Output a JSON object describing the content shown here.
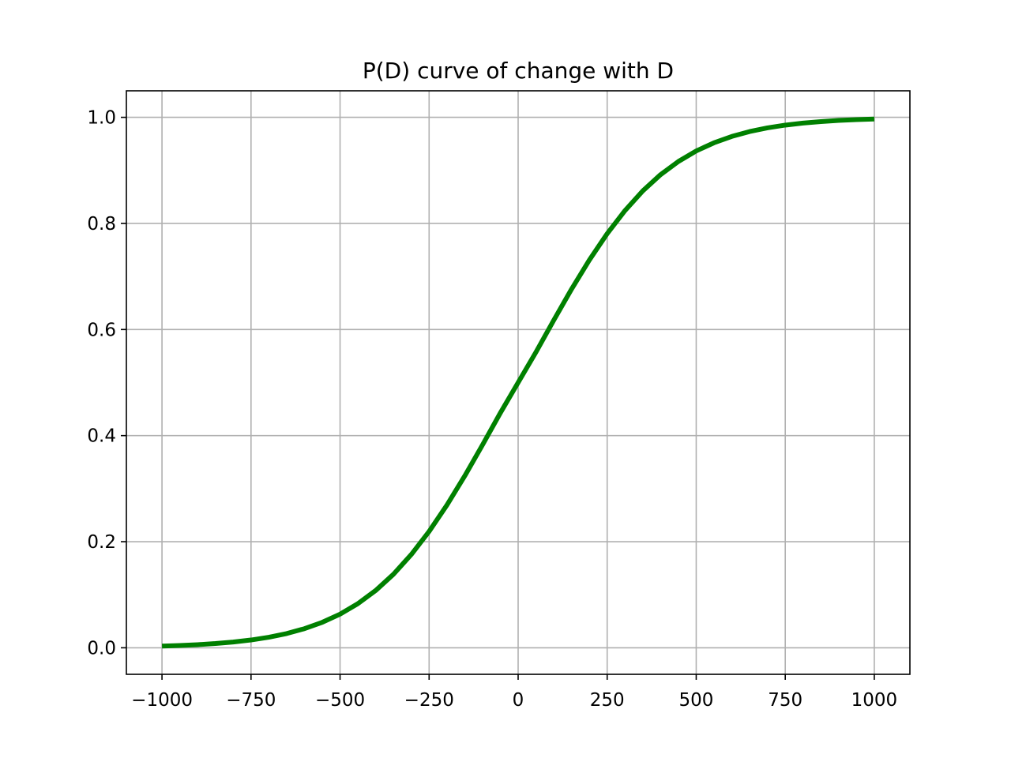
{
  "chart_data": {
    "type": "line",
    "title": "P(D) curve of change with D",
    "xlabel": "",
    "ylabel": "",
    "xlim": [
      -1100,
      1100
    ],
    "ylim": [
      -0.05,
      1.05
    ],
    "grid": true,
    "x_ticks": [
      -1000,
      -750,
      -500,
      -250,
      0,
      250,
      500,
      750,
      1000
    ],
    "x_tick_labels": [
      "−1000",
      "−750",
      "−500",
      "−250",
      "0",
      "250",
      "500",
      "750",
      "1000"
    ],
    "y_ticks": [
      0.0,
      0.2,
      0.4,
      0.6,
      0.8,
      1.0
    ],
    "y_tick_labels": [
      "0.0",
      "0.2",
      "0.4",
      "0.6",
      "0.8",
      "1.0"
    ],
    "series": [
      {
        "color": "#008000",
        "x": [
          -1000,
          -950,
          -900,
          -850,
          -800,
          -750,
          -700,
          -650,
          -600,
          -550,
          -500,
          -450,
          -400,
          -350,
          -300,
          -250,
          -200,
          -150,
          -100,
          -50,
          0,
          50,
          100,
          150,
          200,
          250,
          300,
          350,
          400,
          450,
          500,
          550,
          600,
          650,
          700,
          750,
          800,
          850,
          900,
          950,
          1000
        ],
        "y": [
          0.0032,
          0.0043,
          0.0059,
          0.008,
          0.0109,
          0.0147,
          0.0199,
          0.0268,
          0.036,
          0.048,
          0.0634,
          0.0832,
          0.108,
          0.1387,
          0.1758,
          0.2193,
          0.269,
          0.3238,
          0.3825,
          0.4427,
          0.5,
          0.5573,
          0.6175,
          0.6762,
          0.731,
          0.7807,
          0.8242,
          0.8613,
          0.892,
          0.9168,
          0.9366,
          0.952,
          0.964,
          0.9732,
          0.9801,
          0.9853,
          0.9891,
          0.992,
          0.9941,
          0.9957,
          0.9968
        ]
      }
    ]
  }
}
